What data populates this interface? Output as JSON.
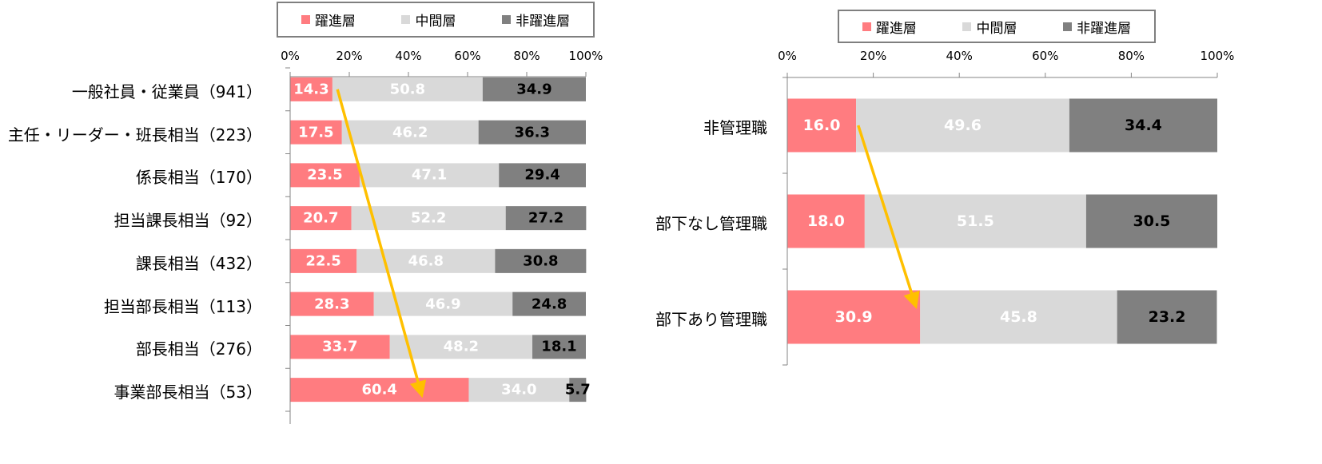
{
  "legend": [
    {
      "name": "躍進層",
      "color": "#ff7c80"
    },
    {
      "name": "中間層",
      "color": "#d9d9d9"
    },
    {
      "name": "非躍進層",
      "color": "#808080"
    }
  ],
  "chart_data": [
    {
      "type": "bar",
      "orientation": "horizontal",
      "stacked": true,
      "legend_position": "top",
      "xlim": [
        0,
        100
      ],
      "ticks": [
        "0%",
        "20%",
        "40%",
        "60%",
        "80%",
        "100%"
      ],
      "categories": [
        "一般社員・従業員（941）",
        "主任・リーダー・班長相当（223）",
        "係長相当（170）",
        "担当課長相当（92）",
        "課長相当（432）",
        "担当部長相当（113）",
        "部長相当（276）",
        "事業部長相当（53）"
      ],
      "series": [
        {
          "name": "躍進層",
          "values": [
            14.3,
            17.5,
            23.5,
            20.7,
            22.5,
            28.3,
            33.7,
            60.4
          ]
        },
        {
          "name": "中間層",
          "values": [
            50.8,
            46.2,
            47.1,
            52.2,
            46.8,
            46.9,
            48.2,
            34.0
          ]
        },
        {
          "name": "非躍進層",
          "values": [
            34.9,
            36.3,
            29.4,
            27.2,
            30.8,
            24.8,
            18.1,
            5.7
          ]
        }
      ],
      "value_labels": [
        [
          "14.3",
          "17.5",
          "23.5",
          "20.7",
          "22.5",
          "28.3",
          "33.7",
          "60.4"
        ],
        [
          "50.8",
          "46.2",
          "47.1",
          "52.2",
          "46.8",
          "46.9",
          "48.2",
          "34.0"
        ],
        [
          "34.9",
          "36.3",
          "29.4",
          "27.2",
          "30.8",
          "24.8",
          "18.1",
          "5.7"
        ]
      ],
      "annotation": {
        "type": "arrow",
        "color": "#ffc000",
        "from": {
          "category": 0,
          "value": 16
        },
        "to": {
          "category": 7,
          "value": 44
        }
      }
    },
    {
      "type": "bar",
      "orientation": "horizontal",
      "stacked": true,
      "legend_position": "top",
      "xlim": [
        0,
        100
      ],
      "ticks": [
        "0%",
        "20%",
        "40%",
        "60%",
        "80%",
        "100%"
      ],
      "categories": [
        "非管理職",
        "部下なし管理職",
        "部下あり管理職"
      ],
      "series": [
        {
          "name": "躍進層",
          "values": [
            16.0,
            18.0,
            30.9
          ]
        },
        {
          "name": "中間層",
          "values": [
            49.6,
            51.5,
            45.8
          ]
        },
        {
          "name": "非躍進層",
          "values": [
            34.4,
            30.5,
            23.2
          ]
        }
      ],
      "value_labels": [
        [
          "16.0",
          "18.0",
          "30.9"
        ],
        [
          "49.6",
          "51.5",
          "45.8"
        ],
        [
          "34.4",
          "30.5",
          "23.2"
        ]
      ],
      "annotation": {
        "type": "arrow",
        "color": "#ffc000",
        "from": {
          "category": 0,
          "value": 16.5
        },
        "to": {
          "category": 2,
          "value": 29.5
        }
      }
    }
  ]
}
